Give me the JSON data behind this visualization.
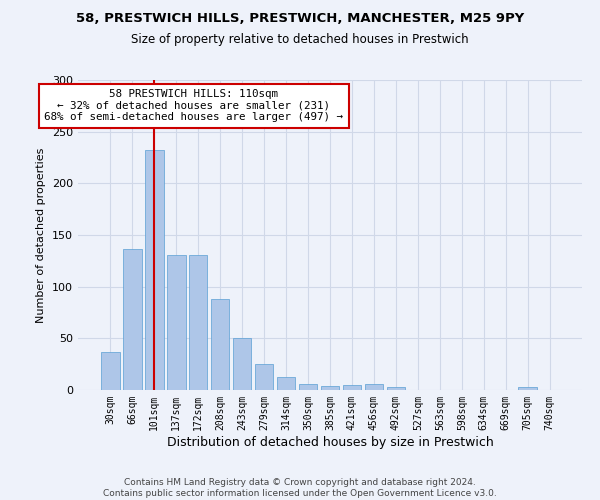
{
  "title1": "58, PRESTWICH HILLS, PRESTWICH, MANCHESTER, M25 9PY",
  "title2": "Size of property relative to detached houses in Prestwich",
  "xlabel": "Distribution of detached houses by size in Prestwich",
  "ylabel": "Number of detached properties",
  "bar_labels": [
    "30sqm",
    "66sqm",
    "101sqm",
    "137sqm",
    "172sqm",
    "208sqm",
    "243sqm",
    "279sqm",
    "314sqm",
    "350sqm",
    "385sqm",
    "421sqm",
    "456sqm",
    "492sqm",
    "527sqm",
    "563sqm",
    "598sqm",
    "634sqm",
    "669sqm",
    "705sqm",
    "740sqm"
  ],
  "bar_values": [
    37,
    136,
    232,
    131,
    131,
    88,
    50,
    25,
    13,
    6,
    4,
    5,
    6,
    3,
    0,
    0,
    0,
    0,
    0,
    3,
    0
  ],
  "bar_color": "#aec6e8",
  "bar_edge_color": "#5a9fd4",
  "grid_color": "#d0d8e8",
  "bg_color": "#eef2fa",
  "vline_x": 2.0,
  "annotation_text": "58 PRESTWICH HILLS: 110sqm\n← 32% of detached houses are smaller (231)\n68% of semi-detached houses are larger (497) →",
  "annotation_box_color": "#ffffff",
  "annotation_box_edge": "#cc0000",
  "vline_color": "#cc0000",
  "footer": "Contains HM Land Registry data © Crown copyright and database right 2024.\nContains public sector information licensed under the Open Government Licence v3.0.",
  "ylim": [
    0,
    300
  ],
  "yticks": [
    0,
    50,
    100,
    150,
    200,
    250,
    300
  ]
}
